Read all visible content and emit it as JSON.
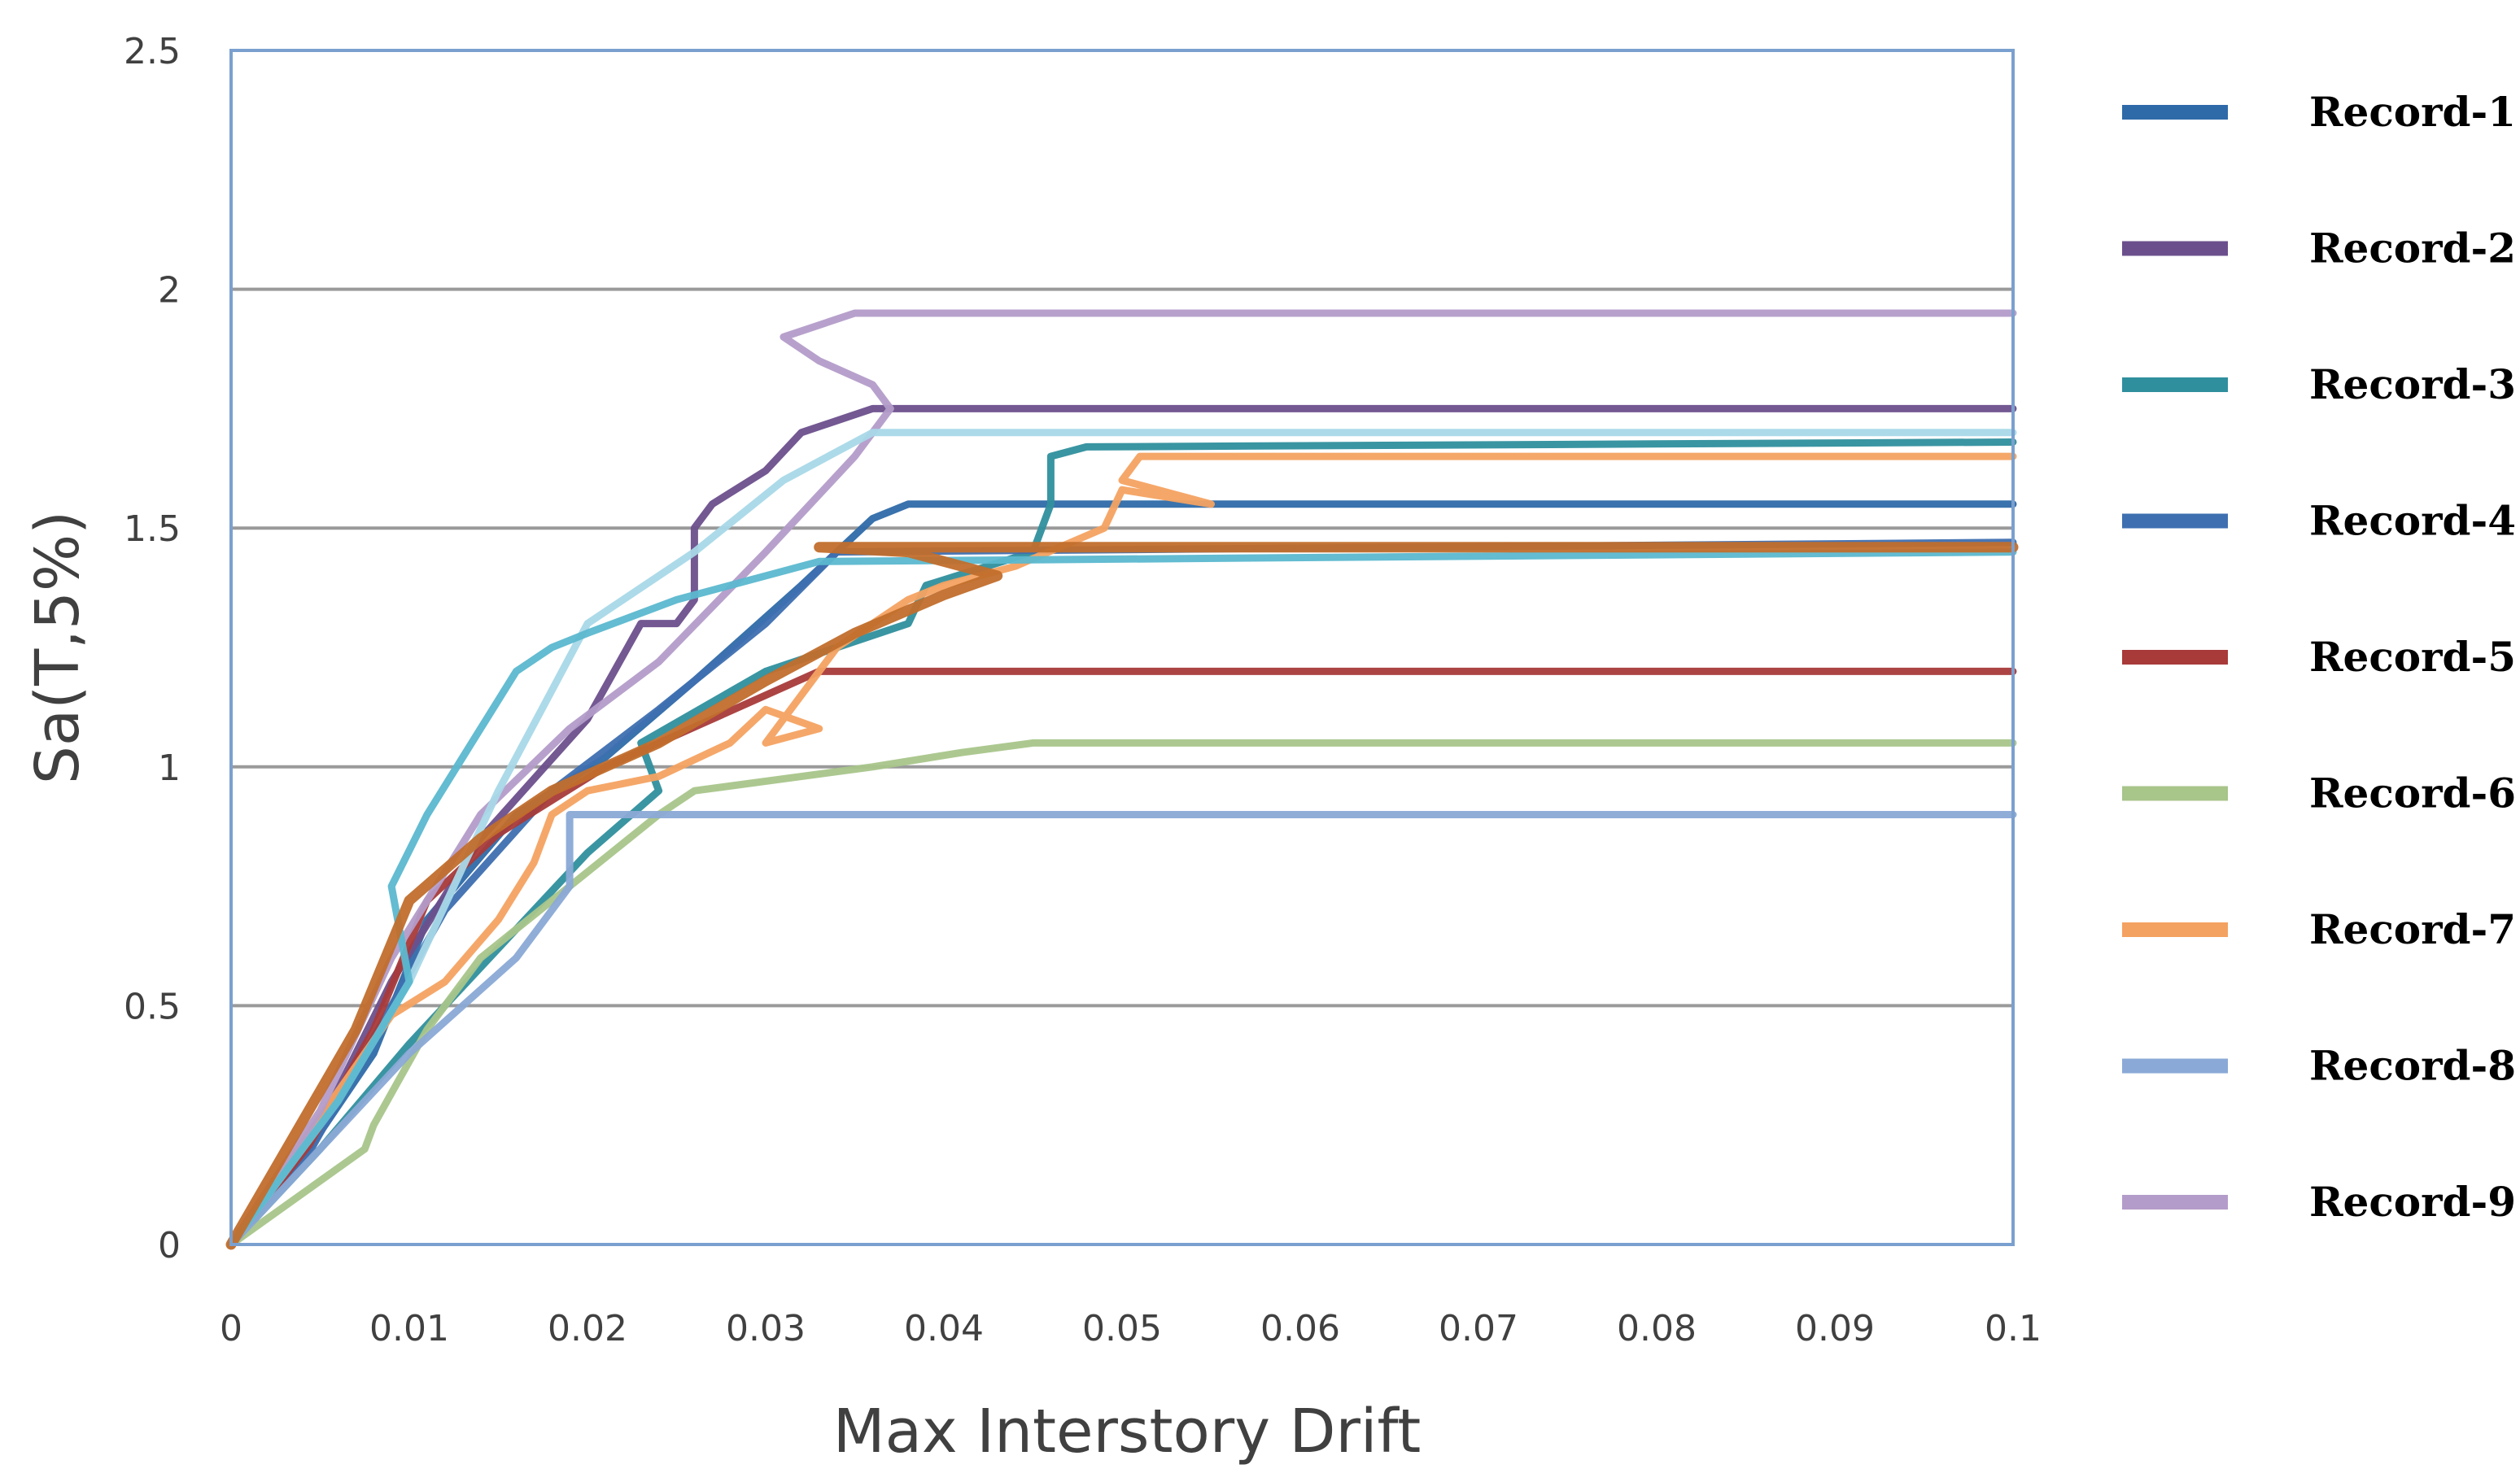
{
  "chart_data": {
    "type": "line",
    "title": "",
    "xlabel": "Max Interstory Drift",
    "ylabel": "Sa(T,5%)",
    "xlim": [
      0,
      0.1
    ],
    "ylim": [
      0,
      2.5
    ],
    "x_ticks": [
      "0",
      "0.01",
      "0.02",
      "0.03",
      "0.04",
      "0.05",
      "0.06",
      "0.07",
      "0.08",
      "0.09",
      "0.1"
    ],
    "y_ticks": [
      "0",
      "0.5",
      "1",
      "1.5",
      "2",
      "2.5"
    ],
    "grid": "horizontal",
    "legend_position": "right",
    "series": [
      {
        "name": "Record-1",
        "color": "#2e6aa8",
        "x": [
          0,
          0.004,
          0.008,
          0.011,
          0.016,
          0.021,
          0.026,
          0.032,
          0.036,
          0.038,
          0.1
        ],
        "y": [
          0,
          0.18,
          0.4,
          0.68,
          0.9,
          1.02,
          1.18,
          1.38,
          1.52,
          1.55,
          1.55
        ]
      },
      {
        "name": "Record-2",
        "color": "#6b4f8c",
        "x": [
          0,
          0.005,
          0.009,
          0.014,
          0.02,
          0.023,
          0.025,
          0.026,
          0.026,
          0.027,
          0.03,
          0.032,
          0.036,
          0.1
        ],
        "y": [
          0,
          0.25,
          0.55,
          0.85,
          1.1,
          1.3,
          1.3,
          1.35,
          1.5,
          1.55,
          1.62,
          1.7,
          1.75,
          1.75
        ]
      },
      {
        "name": "Record-3",
        "color": "#2f8f9d",
        "x": [
          0,
          0.005,
          0.01,
          0.015,
          0.02,
          0.024,
          0.023,
          0.03,
          0.038,
          0.039,
          0.045,
          0.046,
          0.046,
          0.048,
          0.1
        ],
        "y": [
          0,
          0.2,
          0.42,
          0.62,
          0.82,
          0.95,
          1.05,
          1.2,
          1.3,
          1.38,
          1.45,
          1.55,
          1.65,
          1.67,
          1.68
        ]
      },
      {
        "name": "Record-4",
        "color": "#3e6fb0",
        "x": [
          0,
          0.0045,
          0.009,
          0.012,
          0.018,
          0.024,
          0.03,
          0.034,
          0.1
        ],
        "y": [
          0,
          0.2,
          0.5,
          0.7,
          0.95,
          1.12,
          1.3,
          1.45,
          1.47
        ]
      },
      {
        "name": "Record-5",
        "color": "#a83a3a",
        "x": [
          0,
          0.0044,
          0.008,
          0.011,
          0.015,
          0.021,
          0.027,
          0.033,
          0.1
        ],
        "y": [
          0,
          0.21,
          0.45,
          0.72,
          0.86,
          1.0,
          1.1,
          1.2,
          1.2
        ]
      },
      {
        "name": "Record-6",
        "color": "#a8c58a",
        "x": [
          0,
          0.0075,
          0.008,
          0.011,
          0.014,
          0.019,
          0.024,
          0.026,
          0.036,
          0.041,
          0.045,
          0.1
        ],
        "y": [
          0,
          0.2,
          0.25,
          0.45,
          0.6,
          0.75,
          0.9,
          0.95,
          1.0,
          1.03,
          1.05,
          1.05
        ]
      },
      {
        "name": "Record-7",
        "color": "#f4a261",
        "x": [
          0,
          0.006,
          0.009,
          0.012,
          0.015,
          0.017,
          0.018,
          0.02,
          0.024,
          0.028,
          0.03,
          0.033,
          0.03,
          0.034,
          0.038,
          0.04,
          0.044,
          0.049,
          0.05,
          0.055,
          0.05,
          0.051,
          0.1
        ],
        "y": [
          0,
          0.32,
          0.48,
          0.55,
          0.68,
          0.8,
          0.9,
          0.95,
          0.98,
          1.05,
          1.12,
          1.08,
          1.05,
          1.25,
          1.35,
          1.38,
          1.42,
          1.5,
          1.58,
          1.55,
          1.6,
          1.65,
          1.65
        ]
      },
      {
        "name": "Record-8",
        "color": "#8aa9d6",
        "x": [
          0,
          0.005,
          0.01,
          0.016,
          0.019,
          0.019,
          0.022,
          0.1
        ],
        "y": [
          0,
          0.2,
          0.4,
          0.6,
          0.75,
          0.9,
          0.9,
          0.9
        ]
      },
      {
        "name": "Record-9",
        "color": "#b39cc9",
        "x": [
          0,
          0.005,
          0.009,
          0.014,
          0.019,
          0.024,
          0.03,
          0.035,
          0.037,
          0.036,
          0.033,
          0.031,
          0.035,
          0.04,
          0.1
        ],
        "y": [
          0,
          0.28,
          0.6,
          0.9,
          1.08,
          1.22,
          1.45,
          1.65,
          1.75,
          1.8,
          1.85,
          1.9,
          1.95,
          1.95,
          1.95
        ]
      },
      {
        "name": "",
        "color": "#a8d8e8",
        "x": [
          0,
          0.006,
          0.01,
          0.015,
          0.02,
          0.026,
          0.031,
          0.036,
          0.1
        ],
        "y": [
          0,
          0.3,
          0.55,
          0.95,
          1.3,
          1.45,
          1.6,
          1.7,
          1.7
        ]
      },
      {
        "name": "",
        "color": "#5bb8cf",
        "x": [
          0,
          0.006,
          0.01,
          0.009,
          0.011,
          0.014,
          0.016,
          0.018,
          0.02,
          0.025,
          0.033,
          0.1
        ],
        "y": [
          0,
          0.3,
          0.55,
          0.75,
          0.9,
          1.08,
          1.2,
          1.25,
          1.28,
          1.35,
          1.43,
          1.45
        ]
      },
      {
        "name": "",
        "color": "#c16e2c",
        "x": [
          0,
          0.007,
          0.01,
          0.014,
          0.018,
          0.024,
          0.03,
          0.035,
          0.04,
          0.043,
          0.038,
          0.033,
          0.1
        ],
        "y": [
          0,
          0.45,
          0.72,
          0.85,
          0.95,
          1.05,
          1.18,
          1.28,
          1.36,
          1.4,
          1.45,
          1.46,
          1.46
        ]
      }
    ]
  }
}
